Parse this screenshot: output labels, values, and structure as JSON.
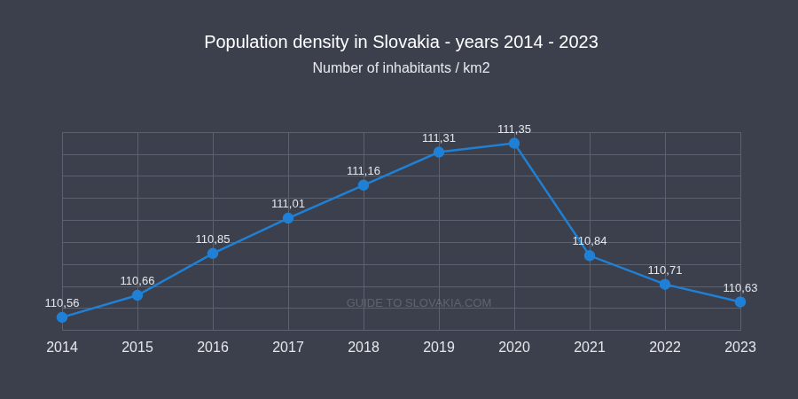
{
  "chart_data": {
    "type": "line",
    "title": "Population density in Slovakia - years 2014 - 2023",
    "subtitle": "Number of inhabitants / km2",
    "categories": [
      "2014",
      "2015",
      "2016",
      "2017",
      "2018",
      "2019",
      "2020",
      "2021",
      "2022",
      "2023"
    ],
    "values": [
      110.56,
      110.66,
      110.85,
      111.01,
      111.16,
      111.31,
      111.35,
      110.84,
      110.71,
      110.63
    ],
    "value_labels": [
      "110,56",
      "110,66",
      "110,85",
      "111,01",
      "111,16",
      "111,31",
      "111,35",
      "110,84",
      "110,71",
      "110,63"
    ],
    "color": "#1f80d6",
    "ylim": [
      110.5,
      111.4
    ],
    "yticks": [
      110.5,
      110.6,
      110.7,
      110.8,
      110.9,
      111.0,
      111.1,
      111.2,
      111.3,
      111.4
    ],
    "grid": true,
    "data_labels": true,
    "tick_labels": "x",
    "marker": "circle",
    "annotations": [
      "GUIDE TO SLOVAKIA.COM"
    ]
  }
}
